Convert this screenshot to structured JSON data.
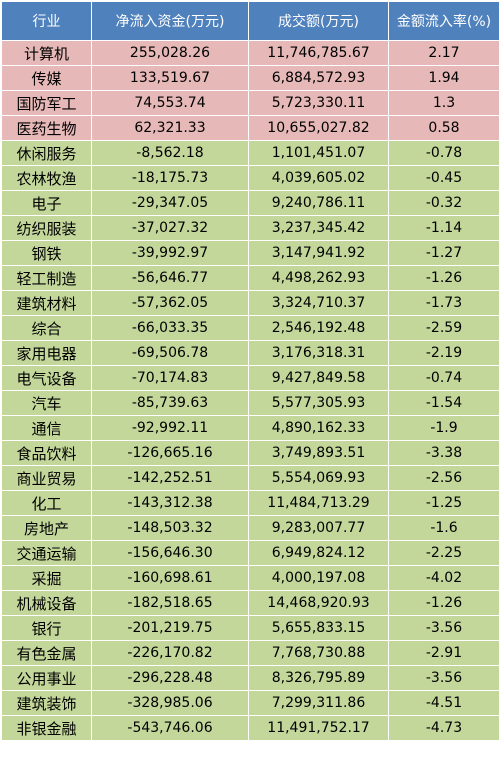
{
  "headers": [
    "行业",
    "净流入资金(万元)",
    "成交额(万元)",
    "金额流入率(%)"
  ],
  "rows": [
    {
      "industry": "计算机",
      "net_inflow": "255,028.26",
      "turnover": "11,746,785.67",
      "rate": "2.17",
      "status": "pos"
    },
    {
      "industry": "传媒",
      "net_inflow": "133,519.67",
      "turnover": "6,884,572.93",
      "rate": "1.94",
      "status": "pos"
    },
    {
      "industry": "国防军工",
      "net_inflow": "74,553.74",
      "turnover": "5,723,330.11",
      "rate": "1.3",
      "status": "pos"
    },
    {
      "industry": "医药生物",
      "net_inflow": "62,321.33",
      "turnover": "10,655,027.82",
      "rate": "0.58",
      "status": "pos"
    },
    {
      "industry": "休闲服务",
      "net_inflow": "-8,562.18",
      "turnover": "1,101,451.07",
      "rate": "-0.78",
      "status": "neg"
    },
    {
      "industry": "农林牧渔",
      "net_inflow": "-18,175.73",
      "turnover": "4,039,605.02",
      "rate": "-0.45",
      "status": "neg"
    },
    {
      "industry": "电子",
      "net_inflow": "-29,347.05",
      "turnover": "9,240,786.11",
      "rate": "-0.32",
      "status": "neg"
    },
    {
      "industry": "纺织服装",
      "net_inflow": "-37,027.32",
      "turnover": "3,237,345.42",
      "rate": "-1.14",
      "status": "neg"
    },
    {
      "industry": "钢铁",
      "net_inflow": "-39,992.97",
      "turnover": "3,147,941.92",
      "rate": "-1.27",
      "status": "neg"
    },
    {
      "industry": "轻工制造",
      "net_inflow": "-56,646.77",
      "turnover": "4,498,262.93",
      "rate": "-1.26",
      "status": "neg"
    },
    {
      "industry": "建筑材料",
      "net_inflow": "-57,362.05",
      "turnover": "3,324,710.37",
      "rate": "-1.73",
      "status": "neg"
    },
    {
      "industry": "综合",
      "net_inflow": "-66,033.35",
      "turnover": "2,546,192.48",
      "rate": "-2.59",
      "status": "neg"
    },
    {
      "industry": "家用电器",
      "net_inflow": "-69,506.78",
      "turnover": "3,176,318.31",
      "rate": "-2.19",
      "status": "neg"
    },
    {
      "industry": "电气设备",
      "net_inflow": "-70,174.83",
      "turnover": "9,427,849.58",
      "rate": "-0.74",
      "status": "neg"
    },
    {
      "industry": "汽车",
      "net_inflow": "-85,739.63",
      "turnover": "5,577,305.93",
      "rate": "-1.54",
      "status": "neg"
    },
    {
      "industry": "通信",
      "net_inflow": "-92,992.11",
      "turnover": "4,890,162.33",
      "rate": "-1.9",
      "status": "neg"
    },
    {
      "industry": "食品饮料",
      "net_inflow": "-126,665.16",
      "turnover": "3,749,893.51",
      "rate": "-3.38",
      "status": "neg"
    },
    {
      "industry": "商业贸易",
      "net_inflow": "-142,252.51",
      "turnover": "5,554,069.93",
      "rate": "-2.56",
      "status": "neg"
    },
    {
      "industry": "化工",
      "net_inflow": "-143,312.38",
      "turnover": "11,484,713.29",
      "rate": "-1.25",
      "status": "neg"
    },
    {
      "industry": "房地产",
      "net_inflow": "-148,503.32",
      "turnover": "9,283,007.77",
      "rate": "-1.6",
      "status": "neg"
    },
    {
      "industry": "交通运输",
      "net_inflow": "-156,646.30",
      "turnover": "6,949,824.12",
      "rate": "-2.25",
      "status": "neg"
    },
    {
      "industry": "采掘",
      "net_inflow": "-160,698.61",
      "turnover": "4,000,197.08",
      "rate": "-4.02",
      "status": "neg"
    },
    {
      "industry": "机械设备",
      "net_inflow": "-182,518.65",
      "turnover": "14,468,920.93",
      "rate": "-1.26",
      "status": "neg"
    },
    {
      "industry": "银行",
      "net_inflow": "-201,219.75",
      "turnover": "5,655,833.15",
      "rate": "-3.56",
      "status": "neg"
    },
    {
      "industry": "有色金属",
      "net_inflow": "-226,170.82",
      "turnover": "7,768,730.88",
      "rate": "-2.91",
      "status": "neg"
    },
    {
      "industry": "公用事业",
      "net_inflow": "-296,228.48",
      "turnover": "8,326,795.89",
      "rate": "-3.56",
      "status": "neg"
    },
    {
      "industry": "建筑装饰",
      "net_inflow": "-328,985.06",
      "turnover": "7,299,311.86",
      "rate": "-4.51",
      "status": "neg"
    },
    {
      "industry": "非银金融",
      "net_inflow": "-543,746.06",
      "turnover": "11,491,752.17",
      "rate": "-4.73",
      "status": "neg"
    }
  ],
  "colors": {
    "header_bg": "#4f81bd",
    "positive_row_bg": "#e6b8b7",
    "negative_row_bg": "#c4d79b"
  }
}
